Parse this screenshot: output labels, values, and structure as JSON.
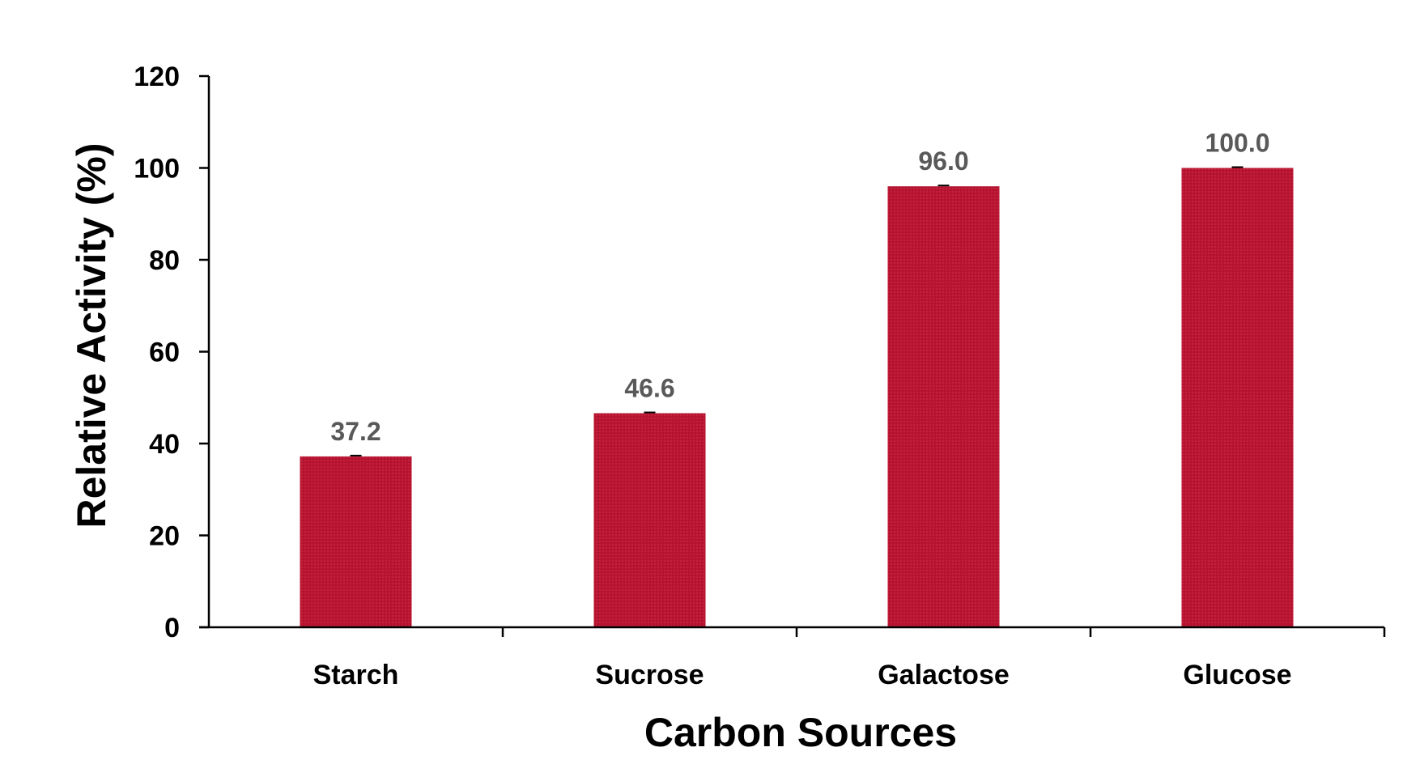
{
  "chart_data": {
    "type": "bar",
    "categories": [
      "Starch",
      "Sucrose",
      "Galactose",
      "Glucose"
    ],
    "values": [
      37.2,
      46.6,
      96.0,
      100.0
    ],
    "data_labels": [
      "37.2",
      "46.6",
      "96.0",
      "100.0"
    ],
    "xlabel": "Carbon Sources",
    "ylabel": "Relative Activity (%)",
    "ylim": [
      0,
      120
    ],
    "yticks": [
      0,
      20,
      40,
      60,
      80,
      100,
      120
    ],
    "grid": false,
    "legend": "none",
    "bar_color": "#b5132f",
    "label_color": "#595959",
    "error_bars": true
  }
}
